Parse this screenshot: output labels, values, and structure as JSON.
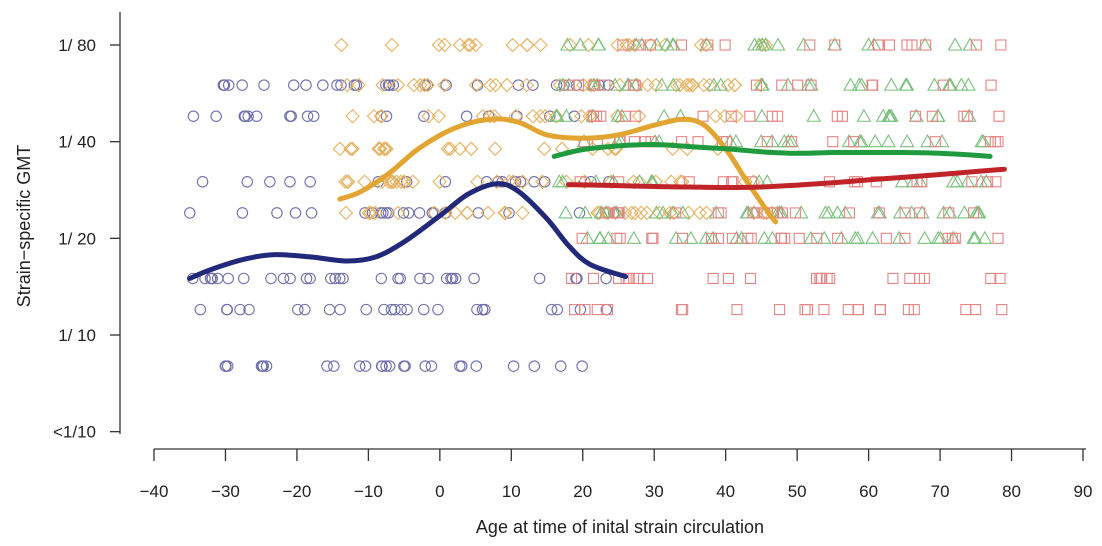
{
  "chart_data": {
    "type": "scatter",
    "title": "",
    "xlabel": "Age at time of inital strain circulation",
    "ylabel": "Strain−specific GMT",
    "xlim": [
      -40,
      90
    ],
    "x_ticks": [
      -40,
      -30,
      -20,
      -10,
      0,
      10,
      20,
      30,
      40,
      50,
      60,
      70,
      80,
      90
    ],
    "x_tick_labels": [
      "−40",
      "−30",
      "−20",
      "−10",
      "0",
      "10",
      "20",
      "30",
      "40",
      "50",
      "60",
      "70",
      "80",
      "90"
    ],
    "y_scale": "log2",
    "y_ticks": [
      5,
      10,
      20,
      40,
      80
    ],
    "y_tick_labels": [
      "<1/10",
      "1/ 10",
      "1/ 20",
      "1/ 40",
      "1/ 80"
    ],
    "ylim": [
      4.3,
      100
    ],
    "grid": false,
    "legend": "none",
    "series": [
      {
        "marker": "circle",
        "color": "#6f6fae",
        "fit_color": "#22297a",
        "x_range": [
          -35,
          26
        ],
        "levels": [
          8,
          12,
          15,
          24,
          30,
          48,
          60
        ],
        "fit": [
          [
            -35,
            15
          ],
          [
            -32,
            16
          ],
          [
            -27,
            17.3
          ],
          [
            -23,
            17.8
          ],
          [
            -18,
            17.5
          ],
          [
            -13,
            17
          ],
          [
            -9,
            17.5
          ],
          [
            -5,
            19.5
          ],
          [
            0,
            23.5
          ],
          [
            4,
            27.5
          ],
          [
            8,
            29.6
          ],
          [
            11,
            28
          ],
          [
            15,
            23
          ],
          [
            18,
            19
          ],
          [
            21,
            16.6
          ],
          [
            26,
            15.2
          ]
        ]
      },
      {
        "marker": "diamond",
        "color": "#e7b261",
        "fit_color": "#e3a532",
        "x_range": [
          -14,
          47
        ],
        "levels": [
          24,
          30,
          38,
          48,
          60,
          80
        ],
        "fit": [
          [
            -14,
            26.5
          ],
          [
            -11,
            28
          ],
          [
            -7,
            32
          ],
          [
            -3,
            38
          ],
          [
            2,
            44
          ],
          [
            7,
            47
          ],
          [
            11,
            46
          ],
          [
            15,
            42
          ],
          [
            20,
            41
          ],
          [
            25,
            42
          ],
          [
            30,
            45
          ],
          [
            34,
            47
          ],
          [
            37,
            45
          ],
          [
            40,
            38
          ],
          [
            43,
            30
          ],
          [
            46,
            24
          ],
          [
            47,
            22.5
          ]
        ]
      },
      {
        "marker": "triangle",
        "color": "#79c07c",
        "fit_color": "#1f9a3e",
        "x_range": [
          16,
          77
        ],
        "levels": [
          20,
          24,
          30,
          40,
          48,
          60,
          80
        ],
        "fit": [
          [
            16,
            36
          ],
          [
            20,
            37.8
          ],
          [
            25,
            38.8
          ],
          [
            30,
            39.2
          ],
          [
            35,
            38.6
          ],
          [
            40,
            38
          ],
          [
            45,
            37.2
          ],
          [
            50,
            36.8
          ],
          [
            55,
            37
          ],
          [
            60,
            37
          ],
          [
            65,
            37
          ],
          [
            70,
            36.8
          ],
          [
            77,
            36
          ]
        ]
      },
      {
        "marker": "square",
        "color": "#e58484",
        "fit_color": "#c02328",
        "x_range": [
          18,
          79
        ],
        "levels": [
          12,
          15,
          20,
          24,
          30,
          40,
          48,
          60,
          80
        ],
        "fit": [
          [
            18,
            29.4
          ],
          [
            25,
            29.2
          ],
          [
            30,
            29
          ],
          [
            35,
            28.9
          ],
          [
            40,
            28.8
          ],
          [
            45,
            28.9
          ],
          [
            50,
            29.3
          ],
          [
            55,
            29.8
          ],
          [
            60,
            30.4
          ],
          [
            65,
            31
          ],
          [
            70,
            31.6
          ],
          [
            75,
            32.3
          ],
          [
            79,
            32.8
          ]
        ]
      }
    ]
  }
}
